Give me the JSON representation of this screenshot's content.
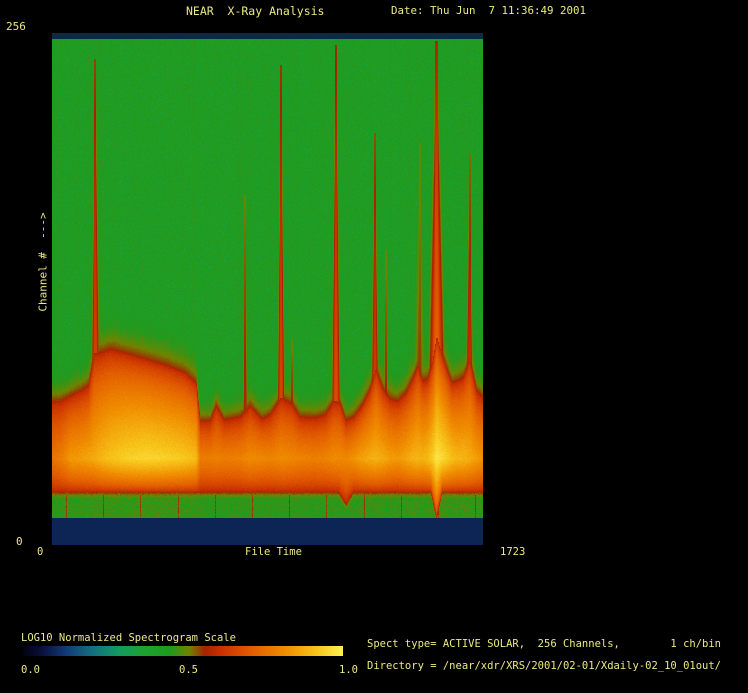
{
  "app": {
    "title": "NEAR  X-Ray Analysis",
    "date": "Date: Thu Jun  7 11:36:49 2001"
  },
  "axes": {
    "y_max": "256",
    "y_min": "0",
    "y_label": "Channel #  --->",
    "x_min": "0",
    "x_label": "File Time",
    "x_max": "1723"
  },
  "colorbar": {
    "title": "LOG10 Normalized Spectrogram Scale",
    "tick_left": "0.0",
    "tick_mid": "0.5",
    "tick_right": "1.0"
  },
  "info": {
    "spect_line": "Spect type= ACTIVE SOLAR,  256 Channels,        1 ch/bin",
    "directory_line": "Directory = /near/xdr/XRS/2001/02-01/Xdaily-02_10_01out/"
  },
  "colors": {
    "text": "#ece984",
    "background": "#000000"
  },
  "chart_data": {
    "type": "heatmap",
    "title": "NEAR X-Ray Analysis",
    "xlabel": "File Time",
    "ylabel": "Channel #",
    "xlim": [
      0,
      1723
    ],
    "ylim": [
      0,
      256
    ],
    "colorbar": {
      "label": "LOG10 Normalized Spectrogram Scale",
      "range": [
        0.0,
        1.0
      ]
    },
    "spect_type": "ACTIVE SOLAR",
    "channels": 256,
    "ch_per_bin": 1,
    "background_value": 0.445,
    "colormap_stops": [
      [
        0.0,
        "#02020e"
      ],
      [
        0.06,
        "#0a0f3c"
      ],
      [
        0.14,
        "#123c7a"
      ],
      [
        0.22,
        "#14707e"
      ],
      [
        0.3,
        "#129a62"
      ],
      [
        0.38,
        "#1da32e"
      ],
      [
        0.46,
        "#1f9a1f"
      ],
      [
        0.52,
        "#6f8400"
      ],
      [
        0.57,
        "#a52300"
      ],
      [
        0.62,
        "#c93000"
      ],
      [
        0.72,
        "#e35f00"
      ],
      [
        0.82,
        "#f08c00"
      ],
      [
        0.92,
        "#f7c51a"
      ],
      [
        1.0,
        "#ffef55"
      ]
    ],
    "band_profile": [
      [
        0,
        72.5,
        0.5
      ],
      [
        32,
        72.5,
        0.55
      ],
      [
        72,
        75,
        0.68
      ],
      [
        112,
        77.5,
        0.7
      ],
      [
        144,
        80,
        0.73
      ],
      [
        168,
        96,
        0.75
      ],
      [
        192,
        96.5,
        0.8
      ],
      [
        232,
        98.5,
        0.85
      ],
      [
        292,
        96.5,
        0.9
      ],
      [
        372,
        93.5,
        0.93
      ],
      [
        452,
        90.5,
        0.91
      ],
      [
        532,
        86.5,
        0.87
      ],
      [
        576,
        81.5,
        0.82
      ],
      [
        592,
        62.5,
        0.55
      ],
      [
        632,
        62.5,
        0.55
      ],
      [
        656,
        70,
        0.57
      ],
      [
        688,
        63,
        0.55
      ],
      [
        752,
        64.5,
        0.57
      ],
      [
        792,
        70,
        0.62
      ],
      [
        840,
        63.5,
        0.6
      ],
      [
        872,
        65.5,
        0.58
      ],
      [
        916,
        74,
        0.62
      ],
      [
        960,
        71,
        0.6
      ],
      [
        992,
        64.5,
        0.58
      ],
      [
        1052,
        64,
        0.56
      ],
      [
        1092,
        65.5,
        0.58
      ],
      [
        1128,
        72.5,
        0.62
      ],
      [
        1152,
        71.5,
        0.62
      ],
      [
        1176,
        62.5,
        0.6
      ],
      [
        1208,
        64.5,
        0.66
      ],
      [
        1240,
        70,
        0.72
      ],
      [
        1272,
        78,
        0.76
      ],
      [
        1296,
        88.5,
        0.78
      ],
      [
        1324,
        78.5,
        0.75
      ],
      [
        1352,
        73.5,
        0.7
      ],
      [
        1384,
        72.5,
        0.68
      ],
      [
        1416,
        76.5,
        0.73
      ],
      [
        1444,
        83.5,
        0.78
      ],
      [
        1464,
        90,
        0.8
      ],
      [
        1484,
        82.5,
        0.78
      ],
      [
        1504,
        83.5,
        0.82
      ],
      [
        1524,
        92.5,
        0.9
      ],
      [
        1540,
        105,
        1.0
      ],
      [
        1556,
        97.5,
        0.96
      ],
      [
        1580,
        88.5,
        0.9
      ],
      [
        1600,
        81.5,
        0.84
      ],
      [
        1624,
        82.5,
        0.8
      ],
      [
        1648,
        84.5,
        0.8
      ],
      [
        1672,
        93.5,
        0.76
      ],
      [
        1700,
        77.5,
        0.7
      ],
      [
        1723,
        74.5,
        0.65
      ]
    ],
    "spikes": [
      [
        172,
        243,
        2,
        8,
        0.75
      ],
      [
        772,
        175,
        1.5,
        5,
        0.5
      ],
      [
        916,
        240,
        2,
        7,
        0.8
      ],
      [
        960,
        103,
        1.5,
        4,
        0.45
      ],
      [
        1136,
        250,
        2.5,
        8,
        0.85
      ],
      [
        1292,
        206,
        2,
        7,
        0.7
      ],
      [
        1336,
        148,
        1.5,
        4,
        0.45
      ],
      [
        1471,
        201,
        2,
        12,
        0.4
      ],
      [
        1539,
        252,
        3.5,
        16,
        1.0
      ],
      [
        1671,
        195,
        2,
        7,
        0.6
      ]
    ],
    "boundaries": [
      56,
      204,
      352,
      504,
      652,
      800,
      951,
      1099,
      1251,
      1399,
      1547,
      1695
    ],
    "bottom_dips": [
      [
        1539,
        26,
        22
      ],
      [
        1176,
        12,
        30
      ]
    ],
    "edge_bands": {
      "top": {
        "rows": 6,
        "color": "#0e2947"
      },
      "bottom": {
        "rows": 27,
        "color": "#0d2555"
      }
    },
    "render": {
      "core_row": 425,
      "band_bottom_row": 459
    }
  }
}
